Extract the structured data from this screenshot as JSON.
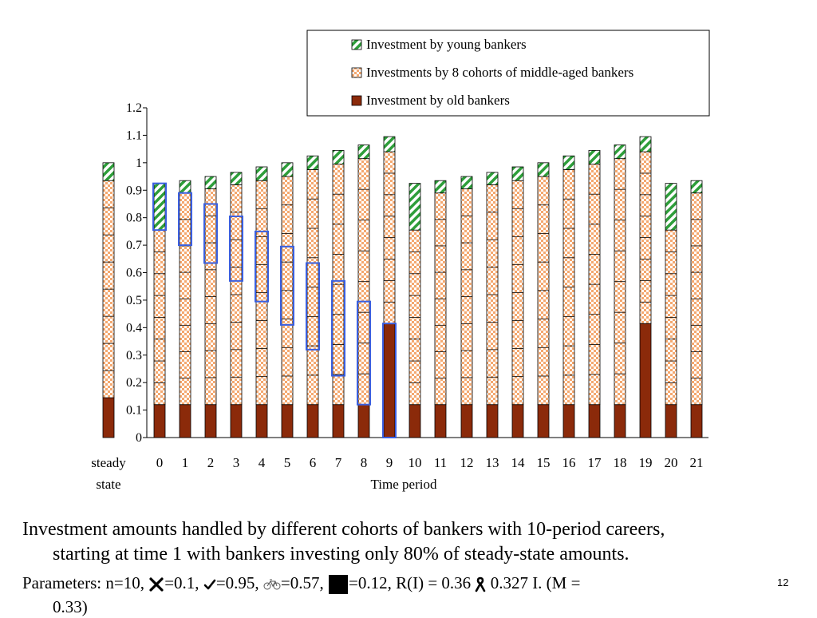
{
  "chart_data": {
    "type": "bar",
    "stacked": true,
    "xlabel": "Time period",
    "categories": [
      "steady state",
      "0",
      "1",
      "2",
      "3",
      "4",
      "5",
      "6",
      "7",
      "8",
      "9",
      "10",
      "11",
      "12",
      "13",
      "14",
      "15",
      "16",
      "17",
      "18",
      "19",
      "20",
      "21"
    ],
    "ylim": [
      0,
      1.2
    ],
    "yticks": [
      "0",
      "0.1",
      "0.2",
      "0.3",
      "0.4",
      "0.5",
      "0.6",
      "0.7",
      "0.8",
      "0.9",
      "1",
      "1.1",
      "1.2"
    ],
    "legend_position": "top-right",
    "series": [
      {
        "name": "Investment by old bankers",
        "color": "#8b2a0a",
        "values": [
          0.145,
          0.12,
          0.12,
          0.12,
          0.12,
          0.12,
          0.12,
          0.12,
          0.12,
          0.12,
          0.415,
          0.12,
          0.12,
          0.12,
          0.12,
          0.12,
          0.12,
          0.12,
          0.12,
          0.12,
          0.415,
          0.12,
          0.12
        ]
      },
      {
        "name": "Investments by 8 cohorts of middle-aged bankers",
        "color": "#f4a870",
        "values": [
          0.79,
          0.635,
          0.77,
          0.785,
          0.8,
          0.815,
          0.83,
          0.855,
          0.875,
          0.895,
          0.625,
          0.635,
          0.77,
          0.785,
          0.8,
          0.815,
          0.83,
          0.855,
          0.875,
          0.895,
          0.625,
          0.635,
          0.77
        ]
      },
      {
        "name": "Investment by young bankers",
        "color": "#2e9e3a",
        "values": [
          0.065,
          0.17,
          0.045,
          0.045,
          0.045,
          0.05,
          0.05,
          0.05,
          0.05,
          0.05,
          0.055,
          0.17,
          0.045,
          0.045,
          0.045,
          0.05,
          0.05,
          0.05,
          0.05,
          0.05,
          0.055,
          0.17,
          0.045
        ]
      }
    ],
    "highlighted_cohort": {
      "color": "#3a5fe0",
      "start_period_index": 1,
      "ranges": [
        [
          0.755,
          0.925
        ],
        [
          0.7,
          0.89
        ],
        [
          0.635,
          0.85
        ],
        [
          0.57,
          0.805
        ],
        [
          0.495,
          0.75
        ],
        [
          0.41,
          0.695
        ],
        [
          0.32,
          0.635
        ],
        [
          0.225,
          0.57
        ],
        [
          0.12,
          0.495
        ],
        [
          0.0,
          0.415
        ]
      ]
    }
  },
  "caption": {
    "line1": "Investment amounts handled by different cohorts of bankers with 10-period careers,",
    "line2": "starting at time 1 with bankers investing only 80% of steady-state amounts."
  },
  "params": {
    "text1": "Parameters:  n=10,  ",
    "text2": "=0.1,  ",
    "text3": "=0.95,  ",
    "text4": "=0.57,  ",
    "text5": "=0.12,  R(I) = 0.36 ",
    "text6": " 0.327 I.   (M =",
    "text7": "0.33)"
  },
  "slide_number": "12"
}
